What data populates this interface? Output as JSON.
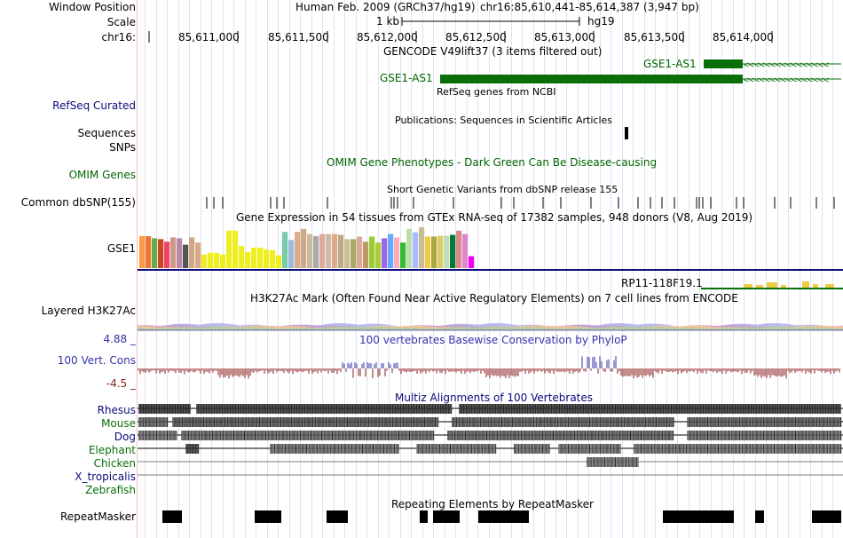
{
  "header": {
    "window_position_label": "Window Position",
    "assembly": "Human Feb. 2009 (GRCh37/hg19)",
    "position": "chr16:85,610,441-85,614,387 (3,947 bp)",
    "scale_label": "Scale",
    "scale_value": "1 kb",
    "scale_db": "hg19",
    "chrom_label": "chr16:",
    "ticks": [
      "85,611,000",
      "85,611,500",
      "85,612,000",
      "85,612,500",
      "85,613,000",
      "85,613,500",
      "85,614,000"
    ]
  },
  "gencode": {
    "title": "GENCODE V49lift37 (3 items filtered out)",
    "gene1": "GSE1-AS1",
    "gene2": "GSE1-AS1"
  },
  "refseq": {
    "title": "RefSeq genes from NCBI",
    "label": "RefSeq Curated"
  },
  "publications": {
    "title": "Publications: Sequences in Scientific Articles",
    "label1": "Sequences",
    "label2": "SNPs"
  },
  "omim": {
    "title": "OMIM Gene Phenotypes - Dark Green Can Be Disease-causing",
    "label": "OMIM Genes"
  },
  "dbsnp": {
    "title": "Short Genetic Variants from dbSNP release 155",
    "label": "Common dbSNP(155)"
  },
  "gtex": {
    "title": "Gene Expression in 54 tissues from GTEx RNA-seq of 17382 samples, 948 donors (V8, Aug 2019)",
    "label": "GSE1",
    "gene2": "RP11-118F19.1",
    "bar_values": [
      0.75,
      0.75,
      0.7,
      0.68,
      0.62,
      0.72,
      0.7,
      0.55,
      0.72,
      0.6,
      0.32,
      0.36,
      0.36,
      0.32,
      0.88,
      0.88,
      0.52,
      0.38,
      0.48,
      0.48,
      0.44,
      0.42,
      0.3,
      0.85,
      0.66,
      0.85,
      0.92,
      0.8,
      0.75,
      0.8,
      0.8,
      0.8,
      0.78,
      0.68,
      0.68,
      0.74,
      0.62,
      0.74,
      0.6,
      0.7,
      0.8,
      0.72,
      0.6,
      0.92,
      0.84,
      0.96,
      0.74,
      0.74,
      0.76,
      0.76,
      0.78,
      0.88,
      0.8,
      0.28
    ],
    "bar_colors": [
      "#ff9944",
      "#ee7733",
      "#66aa44",
      "#cc4422",
      "#ee4466",
      "#cc9988",
      "#bb88aa",
      "#555555",
      "#ccaa88",
      "#ddaa88",
      "#eeee22",
      "#eeee22",
      "#eeee22",
      "#eeee22",
      "#eeee22",
      "#eeee22",
      "#eeee22",
      "#eeee22",
      "#eeee22",
      "#eeee22",
      "#eeee22",
      "#eeee22",
      "#eeee22",
      "#77ccaa",
      "#99bbdd",
      "#ddaa88",
      "#ccaa88",
      "#ccbb99",
      "#aaaaaa",
      "#ddaa99",
      "#ccbbaa",
      "#ddaa88",
      "#bbaa88",
      "#ccbb99",
      "#aaaa66",
      "#ddaa99",
      "#bb9966",
      "#99cc33",
      "#aacc33",
      "#9966ee",
      "#66aaff",
      "#ffaabb",
      "#33bb33",
      "#bbddaa",
      "#aabbff",
      "#ccbb99",
      "#eecc44",
      "#aaaa44",
      "#ddcc66",
      "#bbddbb",
      "#007733",
      "#dd8888",
      "#dd88cc",
      "#ee00ee"
    ]
  },
  "h3k27ac": {
    "title": "H3K27Ac Mark (Often Found Near Active Regulatory Elements) on 7 cell lines from ENCODE",
    "label": "Layered H3K27Ac"
  },
  "conservation": {
    "title": "100 vertebrates Basewise Conservation by PhyloP",
    "label": "100 Vert. Cons",
    "max_label": "4.88 _",
    "min_label": "-4.5 _"
  },
  "multiz": {
    "title": "Multiz Alignments of 100 Vertebrates",
    "species": [
      "Rhesus",
      "Mouse",
      "Dog",
      "Elephant",
      "Chicken",
      "X_tropicalis",
      "Zebrafish"
    ]
  },
  "repeatmasker": {
    "title": "Repeating Elements by RepeatMasker",
    "label": "RepeatMasker"
  },
  "colors": {
    "gencode_green": "#0a6e0a",
    "track_blue": "#0c0c78",
    "cons_pos": "#3333aa",
    "cons_neg": "#8b1a1a"
  }
}
